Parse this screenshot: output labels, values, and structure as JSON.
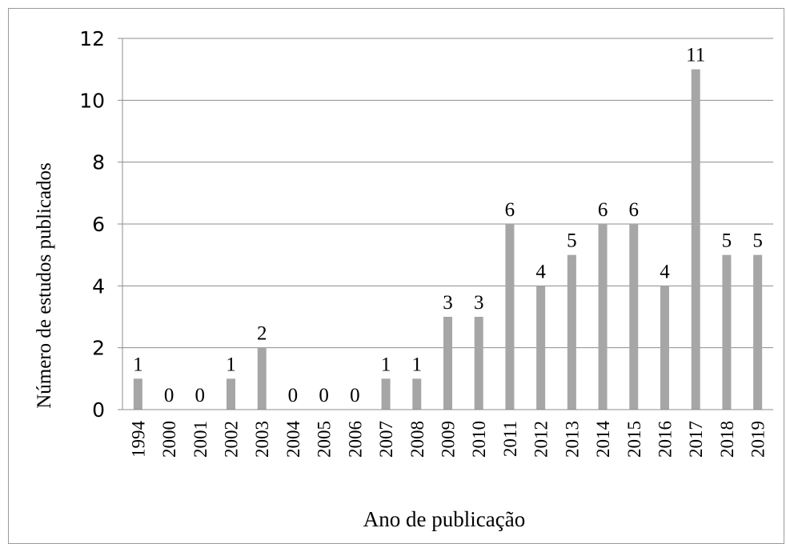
{
  "chart_data": {
    "type": "bar",
    "title": "",
    "xlabel": "Ano de publicação",
    "ylabel": "Número de estudos publicados",
    "categories": [
      "1994",
      "2000",
      "2001",
      "2002",
      "2003",
      "2004",
      "2005",
      "2006",
      "2007",
      "2008",
      "2009",
      "2010",
      "2011",
      "2012",
      "2013",
      "2014",
      "2015",
      "2016",
      "2017",
      "2018",
      "2019"
    ],
    "values": [
      1,
      0,
      0,
      1,
      2,
      0,
      0,
      0,
      1,
      1,
      3,
      3,
      6,
      4,
      5,
      6,
      6,
      4,
      11,
      5,
      5
    ],
    "ylim": [
      0,
      12
    ],
    "yticks": [
      "0",
      "2",
      "4",
      "6",
      "8",
      "10",
      "12"
    ],
    "grid": true,
    "bar_color": "#a6a6a6",
    "gridline_color": "#8c8c8c",
    "data_labels": true
  }
}
